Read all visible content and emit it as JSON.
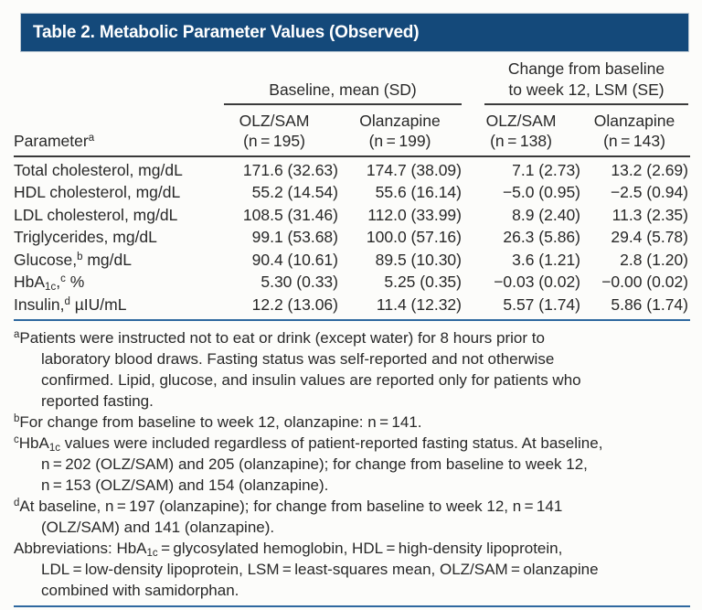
{
  "title": "Table 2. Metabolic Parameter Values (Observed)",
  "colors": {
    "header_bg": "#14497a",
    "rule_dark": "#3b3b3b",
    "rule_blue": "#2e689f",
    "title_text": "#ffffff",
    "body_text": "#282828",
    "background": "#fcfcfa"
  },
  "table": {
    "parameter_label": "Parameter",
    "parameter_marker": "a",
    "group_baseline": "Baseline, mean (SD)",
    "group_change_line1": "Change from baseline",
    "group_change_line2": "to week 12, LSM (SE)",
    "columns": [
      {
        "name": "OLZ/SAM",
        "n": "(n = 195)"
      },
      {
        "name": "Olanzapine",
        "n": "(n = 199)"
      },
      {
        "name": "OLZ/SAM",
        "n": "(n = 138)"
      },
      {
        "name": "Olanzapine",
        "n": "(n = 143)"
      }
    ],
    "rows": [
      {
        "label": [
          {
            "t": "Total cholesterol, mg/dL"
          }
        ],
        "values": [
          "171.6 (32.63)",
          "174.7 (38.09)",
          "7.1 (2.73)",
          "13.2 (2.69)"
        ]
      },
      {
        "label": [
          {
            "t": "HDL cholesterol, mg/dL"
          }
        ],
        "values": [
          "55.2 (14.54)",
          "55.6 (16.14)",
          "−5.0 (0.95)",
          "−2.5 (0.94)"
        ]
      },
      {
        "label": [
          {
            "t": "LDL cholesterol, mg/dL"
          }
        ],
        "values": [
          "108.5 (31.46)",
          "112.0 (33.99)",
          "8.9 (2.40)",
          "11.3 (2.35)"
        ]
      },
      {
        "label": [
          {
            "t": "Triglycerides, mg/dL"
          }
        ],
        "values": [
          "99.1 (53.68)",
          "100.0 (57.16)",
          "26.3 (5.86)",
          "29.4 (5.78)"
        ]
      },
      {
        "label": [
          {
            "t": "Glucose,"
          },
          {
            "sup": "b"
          },
          {
            "t": " mg/dL"
          }
        ],
        "values": [
          "90.4 (10.61)",
          "89.5 (10.30)",
          "3.6 (1.21)",
          "2.8 (1.20)"
        ]
      },
      {
        "label": [
          {
            "t": "HbA"
          },
          {
            "sub": "1c"
          },
          {
            "t": ","
          },
          {
            "sup": "c"
          },
          {
            "t": " %"
          }
        ],
        "values": [
          "5.30 (0.33)",
          "5.25 (0.35)",
          "−0.03 (0.02)",
          "−0.00 (0.02)"
        ]
      },
      {
        "label": [
          {
            "t": "Insulin,"
          },
          {
            "sup": "d"
          },
          {
            "t": " µIU/mL"
          }
        ],
        "values": [
          "12.2 (13.06)",
          "11.4 (12.32)",
          "5.57 (1.74)",
          "5.86 (1.74)"
        ]
      }
    ]
  },
  "footnotes": [
    {
      "marker": "a",
      "lines": [
        [
          {
            "t": "Patients were instructed not to eat or drink (except water) for 8 hours prior to"
          }
        ],
        [
          {
            "t": "laboratory blood draws. Fasting status was self-reported and not otherwise"
          }
        ],
        [
          {
            "t": "confirmed. Lipid, glucose, and insulin values are reported only for patients who"
          }
        ],
        [
          {
            "t": "reported fasting."
          }
        ]
      ]
    },
    {
      "marker": "b",
      "lines": [
        [
          {
            "t": "For change from baseline to week 12, olanzapine: n = 141."
          }
        ]
      ]
    },
    {
      "marker": "c",
      "lines": [
        [
          {
            "t": "HbA"
          },
          {
            "sub": "1c"
          },
          {
            "t": " values were included regardless of patient-reported fasting status. At baseline,"
          }
        ],
        [
          {
            "t": "n = 202 (OLZ/SAM) and 205 (olanzapine); for change from baseline to week 12,"
          }
        ],
        [
          {
            "t": "n = 153 (OLZ/SAM) and 154 (olanzapine)."
          }
        ]
      ]
    },
    {
      "marker": "d",
      "lines": [
        [
          {
            "t": "At baseline, n = 197 (olanzapine); for change from baseline to week 12, n = 141"
          }
        ],
        [
          {
            "t": "(OLZ/SAM) and 141 (olanzapine)."
          }
        ]
      ]
    },
    {
      "marker": "",
      "lines": [
        [
          {
            "t": "Abbreviations: HbA"
          },
          {
            "sub": "1c"
          },
          {
            "t": " = glycosylated hemoglobin, HDL = high-density lipoprotein,"
          }
        ],
        [
          {
            "t": "LDL = low-density lipoprotein, LSM = least-squares mean, OLZ/SAM = olanzapine"
          }
        ],
        [
          {
            "t": "combined with samidorphan."
          }
        ]
      ]
    }
  ]
}
